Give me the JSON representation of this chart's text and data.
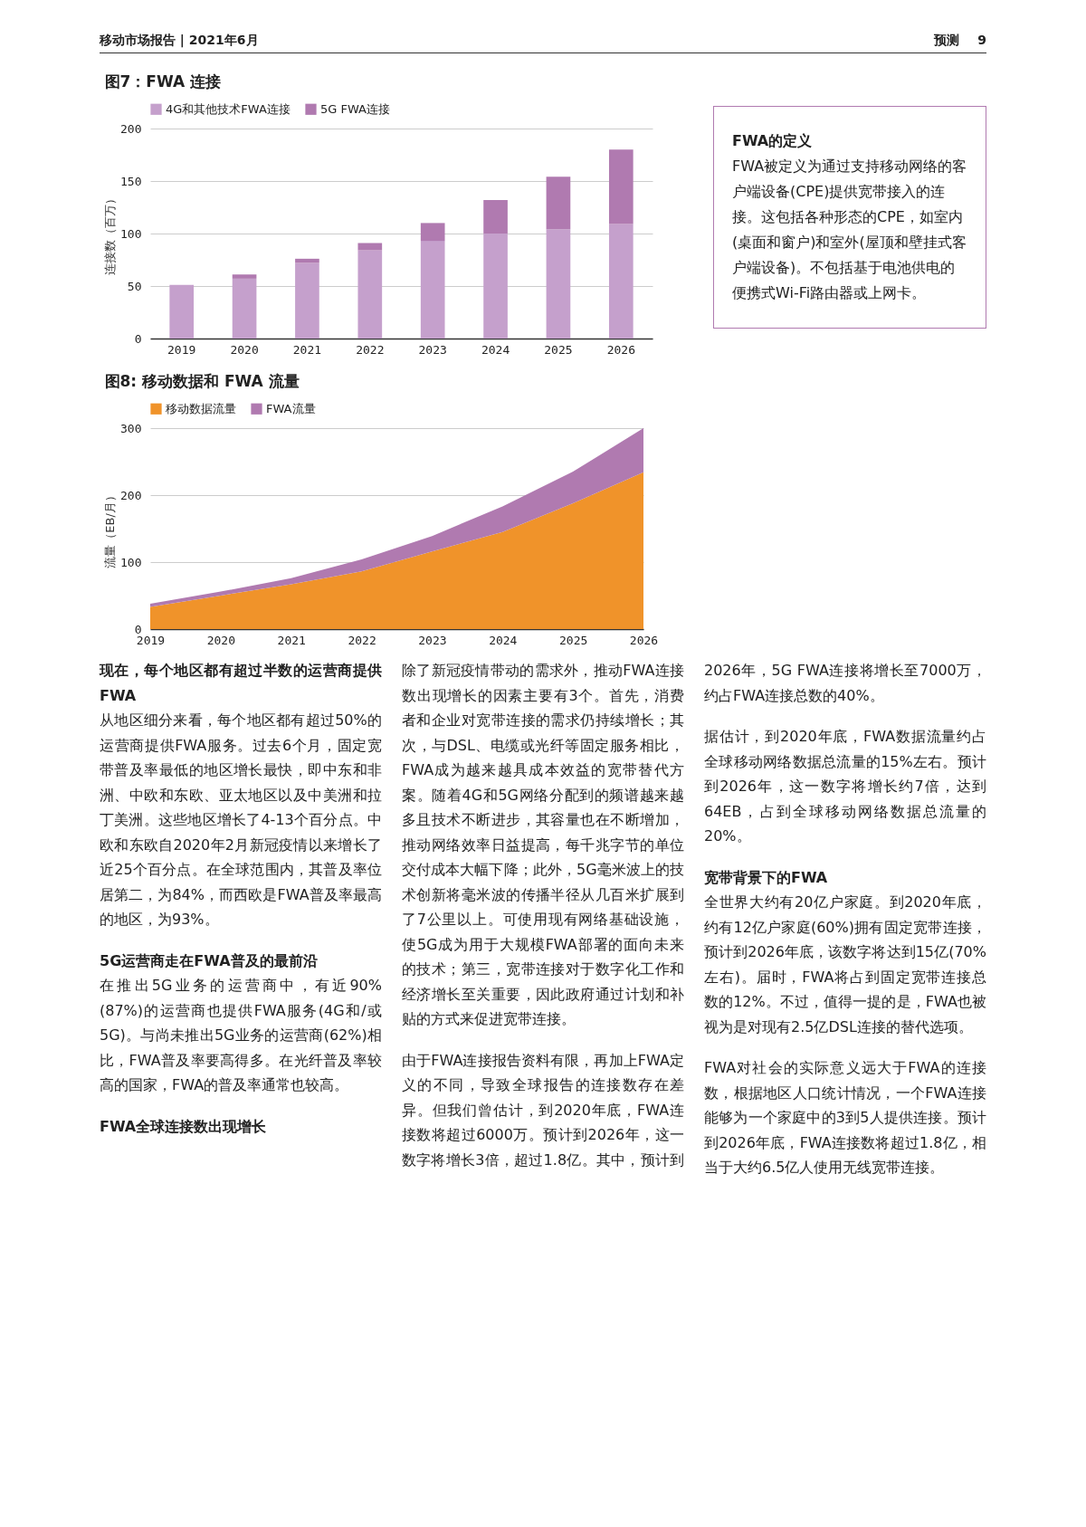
{
  "chart_data": [
    {
      "type": "other",
      "annotations": [
        "移动市场报告 | 2021年6月",
        "预测",
        "9"
      ]
    },
    {
      "type": "bar",
      "title": "图7：FWA 连接",
      "ylabel": "连接数（百万）",
      "categories": [
        "2019",
        "2020",
        "2021",
        "2022",
        "2023",
        "2024",
        "2025",
        "2026"
      ],
      "stacked": true,
      "series": [
        {
          "name": "4G和其他技术FWA连接",
          "color": "#c5a0cc",
          "values": [
            51,
            57,
            72,
            84,
            93,
            100,
            104,
            109
          ]
        },
        {
          "name": "5G FWA连接",
          "color": "#b07ab0",
          "values": [
            0,
            4,
            4,
            7,
            17,
            32,
            50,
            71
          ]
        }
      ],
      "ylim": [
        0,
        200
      ],
      "yticks": [
        0,
        50,
        100,
        150,
        200
      ],
      "grid": "y",
      "legend": "top left"
    },
    {
      "type": "other",
      "title": "FWA的定义",
      "annotations": [
        "FWA被定义为通过支持移动网络的客户端设备(CPE)提供宽带接入的连接。这包括各种形态的CPE，如室内(桌面和窗户)和室外(屋顶和壁挂式客户端设备)。不包括基于电池供电的便携式Wi-Fi路由器或上网卡。"
      ]
    },
    {
      "type": "area",
      "title": "图8: 移动数据和 FWA 流量",
      "ylabel": "流量（EB/月）",
      "categories": [
        "2019",
        "2020",
        "2021",
        "2022",
        "2023",
        "2024",
        "2025",
        "2026"
      ],
      "stacked": true,
      "series": [
        {
          "name": "移动数据流量",
          "color": "#f0932a",
          "values": [
            33,
            50,
            67,
            86,
            116,
            145,
            188,
            234
          ]
        },
        {
          "name": "FWA流量",
          "color": "#b07ab0",
          "values": [
            5,
            6,
            9,
            18,
            23,
            38,
            47,
            66
          ]
        }
      ],
      "ylim": [
        0,
        300
      ],
      "yticks": [
        0,
        100,
        200,
        300
      ],
      "grid": "y",
      "legend": "top left"
    },
    {
      "type": "other",
      "annotations": [
        "现在，每个地区都有超过半数的运营商提供FWA",
        "从地区细分来看，每个地区都有超过50%的运营商提供FWA服务。过去6个月，固定宽带普及率最低的地区增长最快，即中东和非洲、中欧和东欧、亚太地区以及中美洲和拉丁美洲。这些地区增长了4-13个百分点。中欧和东欧自2020年2月新冠疫情以来增长了近25个百分点。在全球范围内，其普及率位居第二，为84%，而西欧是FWA普及率最高的地区，为93%。",
        "5G运营商走在FWA普及的最前沿",
        "在推出5G业务的运营商中，有近90%(87%)的运营商也提供FWA服务(4G和/或5G)。与尚未推出5G业务的运营商(62%)相比，FWA普及率要高得多。在光纤普及率较高的国家，FWA的普及率通常也较高。",
        "FWA全球连接数出现增长",
        "除了新冠疫情带动的需求外，推动FWA连接数出现增长的因素主要有3个。首先，消费者和企业对宽带连接的需求仍持续增长；其次，与DSL、电缆或光纤等固定服务相比，FWA成为越来越具成本效益的宽带替代方案。随着4G和5G网络分配到的频谱越来越多且技术不断进步，其容量也在不断增加，推动网络效率日益提高，每千兆字节的单位交付成本大幅下降；此外，5G毫米波上的技术创新将毫米波的传播半径从几百米扩展到了7公里以上。可使用现有网络基础设施，使5G成为用于大规模FWA部署的面向未来的技术；第三，宽带连接对于数字化工作和经济增长至关重要，因此政府通过计划和补贴的方式来促进宽带连接。",
        "由于FWA连接报告资料有限，再加上FWA定义的不同，导致全球报告的连接数存在差异。但我们曾估计，到2020年底，FWA连接数将超过6000万。预计到2026年，这一数字将增长3倍，超过1.8亿。其中，预计到2026年，5G FWA连接将增长至7000万，约占FWA连接总数的40%。",
        "据估计，到2020年底，FWA数据流量约占全球移动网络数据总流量的15%左右。预计到2026年，这一数字将增长约7倍，达到64EB，占到全球移动网络数据总流量的20%。",
        "宽带背景下的FWA",
        "全世界大约有20亿户家庭。到2020年底，约有12亿户家庭(60%)拥有固定宽带连接，预计到2026年底，该数字将达到15亿(70%左右)。届时，FWA将占到固定宽带连接总数的12%。不过，值得一提的是，FWA也被视为是对现有2.5亿DSL连接的替代选项。",
        "FWA对社会的实际意义远大于FWA的连接数，根据地区人口统计情况，一个FWA连接能够为一个家庭中的3到5人提供连接。预计到2026年底，FWA连接数将超过1.8亿，相当于大约6.5亿人使用无线宽带连接。"
      ]
    }
  ]
}
